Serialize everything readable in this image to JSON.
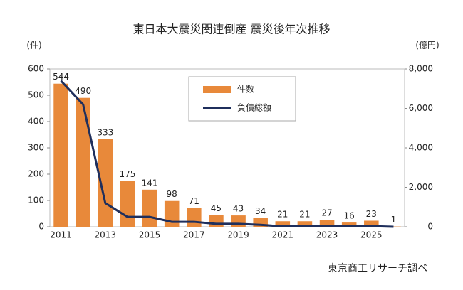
{
  "chart_data": {
    "type": "bar",
    "title": "東日本大震災関連倒産 震災後年次推移",
    "y_label": "(件)",
    "y2_label": "(億円)",
    "source": "東京商工リサーチ調べ",
    "categories": [
      "2011",
      null,
      "2013",
      null,
      "2015",
      null,
      "2017",
      null,
      "2019",
      null,
      "2021",
      null,
      "2023",
      null,
      "2025",
      null
    ],
    "series": [
      {
        "name": "件数",
        "type": "bar",
        "color": "#e8893a",
        "values": [
          544,
          490,
          333,
          175,
          141,
          98,
          71,
          45,
          43,
          34,
          21,
          21,
          27,
          16,
          23,
          1
        ]
      },
      {
        "name": "負債総額",
        "type": "line",
        "axis": "y2",
        "color": "#1f2f5c",
        "values": [
          7400,
          6200,
          1200,
          500,
          500,
          250,
          250,
          150,
          150,
          100,
          20,
          30,
          40,
          20,
          30,
          0
        ]
      }
    ],
    "ylim": [
      0,
      600
    ],
    "yticks": [
      0,
      100,
      200,
      300,
      400,
      500,
      600
    ],
    "y2lim": [
      0,
      8000
    ],
    "y2ticks": [
      0,
      {
        "value": 2000,
        "label": "2,000"
      },
      {
        "value": 4000,
        "label": "4,000"
      },
      {
        "value": 6000,
        "label": "6,000"
      },
      {
        "value": 8000,
        "label": "8,000"
      }
    ],
    "legend": "top-center"
  }
}
